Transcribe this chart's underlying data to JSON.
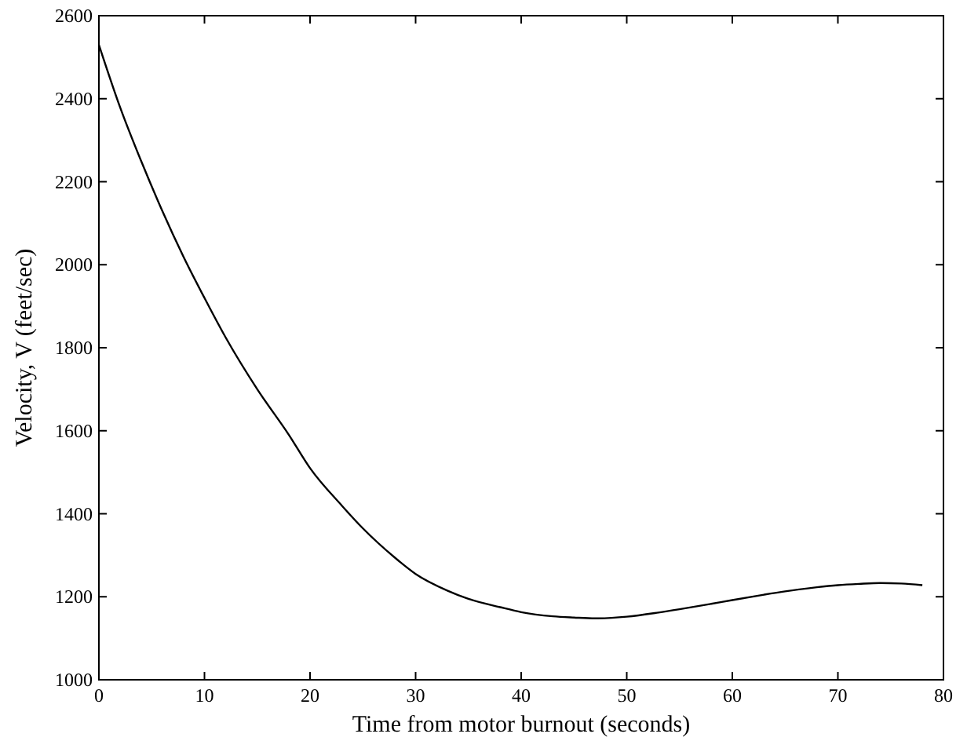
{
  "chart_data": {
    "type": "line",
    "xlabel": "Time from motor burnout (seconds)",
    "ylabel": "Velocity, V (feet/sec)",
    "x": [
      0,
      2,
      4,
      6,
      8,
      10,
      12,
      15,
      18,
      20,
      23,
      25,
      28,
      30,
      33,
      35,
      38,
      40,
      43,
      45,
      47,
      50,
      53,
      55,
      58,
      60,
      63,
      65,
      68,
      70,
      72,
      74,
      76,
      78
    ],
    "series": [
      {
        "color": "#000000",
        "values": [
          2530,
          2380,
          2250,
          2130,
          2020,
          1920,
          1825,
          1700,
          1590,
          1510,
          1420,
          1365,
          1295,
          1255,
          1215,
          1195,
          1175,
          1163,
          1153,
          1150,
          1148,
          1152,
          1162,
          1170,
          1183,
          1192,
          1205,
          1213,
          1223,
          1228,
          1231,
          1233,
          1232,
          1228
        ]
      }
    ],
    "xlim": [
      0,
      80
    ],
    "xticks": [
      0,
      10,
      20,
      30,
      40,
      50,
      60,
      70,
      80
    ],
    "ylim": [
      1000,
      2600
    ],
    "yticks": [
      1000,
      1200,
      1400,
      1600,
      1800,
      2000,
      2200,
      2400,
      2600
    ],
    "grid": false,
    "marker": "none",
    "line_style": "solid"
  }
}
